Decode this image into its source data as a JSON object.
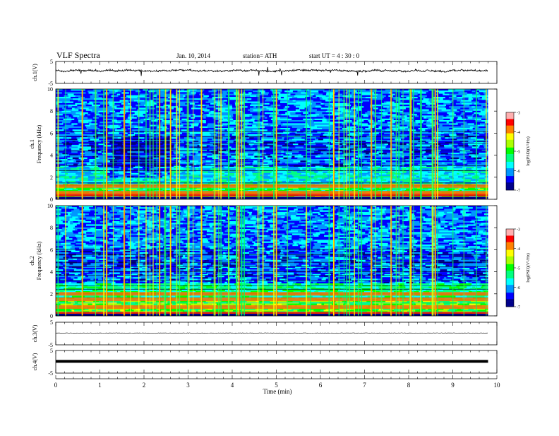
{
  "header": {
    "title": "VLF  Spectra",
    "date": "Jan. 10, 2014",
    "station": "station= ATH",
    "start": "start  UT  =   4  : 30 : 0"
  },
  "chart_data": [
    {
      "type": "line",
      "name": "ch1-waveform",
      "ylabel": "ch.1(V)",
      "ylim": [
        -5,
        5
      ],
      "yticks": [
        "5",
        "-5"
      ],
      "xlim": [
        0,
        10
      ],
      "baseline": 0,
      "color": "#000000"
    },
    {
      "type": "heatmap",
      "name": "ch1-spectrogram",
      "ylabel_channel": "ch.1",
      "ylabel": "Frequency  (kHz)",
      "ylim": [
        0,
        10
      ],
      "yticks": [
        "0",
        "2",
        "4",
        "6",
        "8",
        "10"
      ],
      "xlim": [
        0,
        10
      ],
      "data_extent_min": 9.8,
      "colorbar": {
        "label": "log(PSD)(V²/Hz)",
        "range": [
          -7,
          -3
        ],
        "ticks": [
          "-7",
          "-6",
          "-5",
          "-4",
          "-3"
        ]
      },
      "strong_bands_khz": [
        0.4,
        0.6,
        1.2
      ],
      "quiet_interval_min": [
        1.15,
        2.55
      ]
    },
    {
      "type": "heatmap",
      "name": "ch2-spectrogram",
      "ylabel_channel": "ch.2",
      "ylabel": "Frequency  (kHz)",
      "ylim": [
        0,
        10
      ],
      "yticks": [
        "0",
        "2",
        "4",
        "6",
        "8",
        "10"
      ],
      "xlim": [
        0,
        10
      ],
      "data_extent_min": 9.8,
      "colorbar": {
        "label": "log(PSD)(V²/Hz)",
        "range": [
          -7,
          -3
        ],
        "ticks": [
          "-7",
          "-6",
          "-5",
          "-4",
          "-3"
        ]
      },
      "strong_bands_khz": [
        0.2,
        0.8,
        1.5,
        2.0
      ],
      "quiet_interval_min": [
        1.15,
        2.55
      ]
    },
    {
      "type": "line",
      "name": "ch3-waveform",
      "ylabel": "ch.3(V)",
      "ylim": [
        -5,
        5
      ],
      "yticks": [
        "5",
        "-5"
      ],
      "xlim": [
        0,
        10
      ],
      "baseline": 0,
      "color": "#000000"
    },
    {
      "type": "line",
      "name": "ch4-waveform",
      "ylabel": "ch.4(V)",
      "ylim": [
        -5,
        5
      ],
      "yticks": [
        "5",
        "-5"
      ],
      "xlim": [
        0,
        10
      ],
      "baseline": 0,
      "color": "#000000"
    }
  ],
  "xaxis": {
    "label": "Time  (min)",
    "ticks": [
      "0",
      "1",
      "2",
      "3",
      "4",
      "5",
      "6",
      "7",
      "8",
      "9",
      "10"
    ]
  },
  "colors": {
    "colormap": [
      "#00008b",
      "#0000ff",
      "#0096ff",
      "#00ffff",
      "#00ff7f",
      "#00ff00",
      "#aaff00",
      "#ffff00",
      "#ff8000",
      "#ff0000",
      "#ffb0b0"
    ]
  }
}
